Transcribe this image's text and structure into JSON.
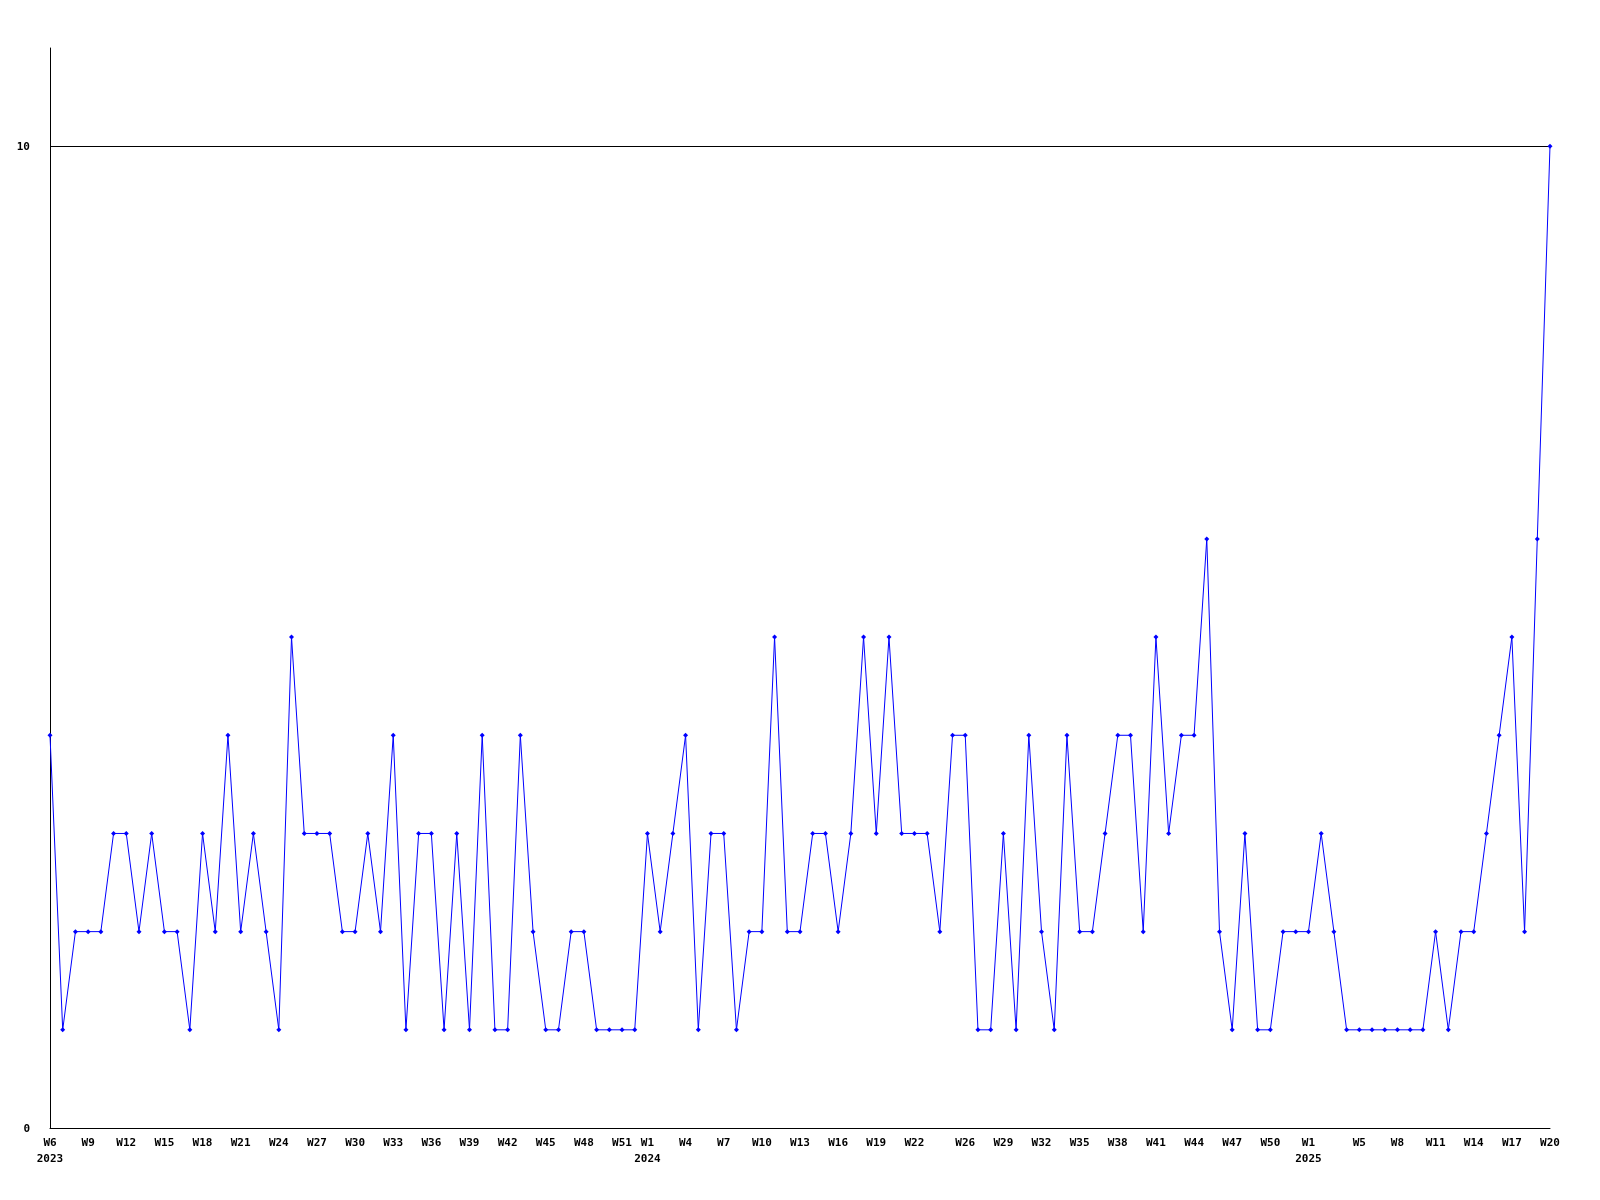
{
  "chart_data": {
    "type": "line",
    "categories": [
      "W6\n2023",
      null,
      null,
      "W9",
      null,
      null,
      "W12",
      null,
      null,
      "W15",
      null,
      null,
      "W18",
      null,
      null,
      "W21",
      null,
      null,
      "W24",
      null,
      null,
      "W27",
      null,
      null,
      "W30",
      null,
      null,
      "W33",
      null,
      null,
      "W36",
      null,
      null,
      "W39",
      null,
      null,
      "W42",
      null,
      null,
      "W45",
      null,
      null,
      "W48",
      null,
      null,
      "W51",
      null,
      "W1\n2024",
      null,
      null,
      "W4",
      null,
      null,
      "W7",
      null,
      null,
      "W10",
      null,
      null,
      "W13",
      null,
      null,
      "W16",
      null,
      null,
      "W19",
      null,
      null,
      "W22",
      null,
      null,
      null,
      "W26",
      null,
      null,
      "W29",
      null,
      null,
      "W32",
      null,
      null,
      "W35",
      null,
      null,
      "W38",
      null,
      null,
      "W41",
      null,
      null,
      "W44",
      null,
      null,
      "W47",
      null,
      null,
      "W50",
      null,
      null,
      "W1\n2025",
      null,
      null,
      null,
      "W5",
      null,
      null,
      "W8",
      null,
      null,
      "W11",
      null,
      null,
      "W14",
      null,
      null,
      "W17",
      null,
      null,
      "W20"
    ],
    "series": [
      {
        "color": "#0000ff",
        "values": [
          4,
          1,
          2,
          2,
          2,
          3,
          3,
          2,
          3,
          2,
          2,
          1,
          3,
          2,
          4,
          2,
          3,
          2,
          1,
          5,
          3,
          3,
          3,
          2,
          2,
          3,
          2,
          4,
          1,
          3,
          3,
          1,
          3,
          1,
          4,
          1,
          1,
          4,
          2,
          1,
          1,
          2,
          2,
          1,
          1,
          1,
          1,
          3,
          2,
          3,
          4,
          1,
          3,
          3,
          1,
          2,
          2,
          5,
          2,
          2,
          3,
          3,
          2,
          3,
          5,
          3,
          5,
          3,
          3,
          3,
          2,
          4,
          4,
          1,
          1,
          3,
          1,
          4,
          2,
          1,
          4,
          2,
          2,
          3,
          4,
          4,
          2,
          5,
          3,
          4,
          4,
          6,
          2,
          1,
          3,
          1,
          1,
          2,
          2,
          2,
          3,
          2,
          1,
          1,
          1,
          1,
          1,
          1,
          1,
          2,
          1,
          2,
          2,
          3,
          4,
          5,
          2,
          6,
          10
        ]
      }
    ],
    "ylim": [
      0,
      11
    ],
    "yticks": [
      0,
      10
    ],
    "grid": "y",
    "marker": "diamond",
    "line_style": "solid"
  }
}
